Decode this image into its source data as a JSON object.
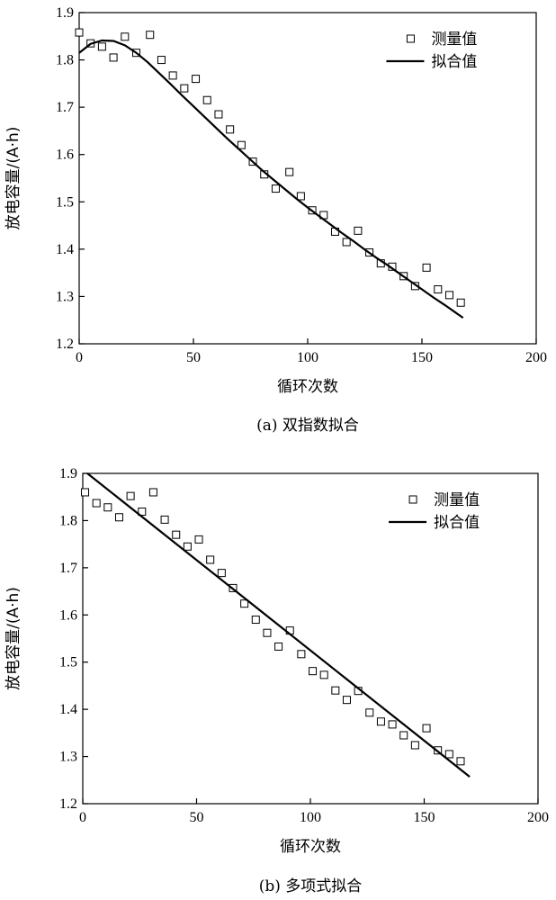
{
  "chart_data": [
    {
      "type": "scatter",
      "caption": "(a) 双指数拟合",
      "xlabel": "循环次数",
      "ylabel": "放电容量/(A·h)",
      "xlim": [
        0,
        200
      ],
      "ylim": [
        1.2,
        1.9
      ],
      "xticks": [
        "0",
        "50",
        "100",
        "150",
        "200"
      ],
      "yticks": [
        "1.2",
        "1.3",
        "1.4",
        "1.5",
        "1.6",
        "1.7",
        "1.8",
        "1.9"
      ],
      "legend": [
        "测量值",
        "拟合值"
      ],
      "legend_position": "top-right",
      "grid": false,
      "series": [
        {
          "name": "测量值",
          "marker": "hollow-square",
          "x": [
            0,
            5,
            10,
            15,
            20,
            25,
            31,
            36,
            41,
            46,
            51,
            56,
            61,
            66,
            71,
            76,
            81,
            86,
            92,
            97,
            102,
            107,
            112,
            117,
            122,
            127,
            132,
            137,
            142,
            147,
            152,
            157,
            162,
            167
          ],
          "y": [
            1.858,
            1.835,
            1.828,
            1.805,
            1.849,
            1.815,
            1.853,
            1.8,
            1.767,
            1.74,
            1.76,
            1.715,
            1.685,
            1.653,
            1.62,
            1.585,
            1.558,
            1.528,
            1.563,
            1.512,
            1.482,
            1.472,
            1.437,
            1.415,
            1.439,
            1.393,
            1.37,
            1.363,
            1.343,
            1.322,
            1.361,
            1.315,
            1.303,
            1.287
          ]
        },
        {
          "name": "拟合值",
          "style": "line",
          "x": [
            0,
            5,
            10,
            15,
            20,
            25,
            30,
            35,
            40,
            45,
            50,
            55,
            60,
            65,
            70,
            75,
            80,
            85,
            90,
            95,
            100,
            105,
            110,
            115,
            120,
            125,
            130,
            135,
            140,
            145,
            150,
            155,
            160,
            165,
            168
          ],
          "y": [
            1.815,
            1.834,
            1.841,
            1.84,
            1.831,
            1.815,
            1.795,
            1.772,
            1.749,
            1.725,
            1.702,
            1.679,
            1.656,
            1.633,
            1.611,
            1.589,
            1.567,
            1.547,
            1.527,
            1.507,
            1.488,
            1.47,
            1.452,
            1.434,
            1.417,
            1.399,
            1.382,
            1.366,
            1.349,
            1.332,
            1.315,
            1.298,
            1.282,
            1.265,
            1.255
          ]
        }
      ]
    },
    {
      "type": "scatter",
      "caption": "(b) 多项式拟合",
      "xlabel": "循环次数",
      "ylabel": "放电容量/(A·h)",
      "xlim": [
        0,
        200
      ],
      "ylim": [
        1.2,
        1.9
      ],
      "xticks": [
        "0",
        "50",
        "100",
        "150",
        "200"
      ],
      "yticks": [
        "1.2",
        "1.3",
        "1.4",
        "1.5",
        "1.6",
        "1.7",
        "1.8",
        "1.9"
      ],
      "legend": [
        "测量值",
        "拟合值"
      ],
      "legend_position": "top-right",
      "grid": false,
      "series": [
        {
          "name": "测量值",
          "marker": "hollow-square",
          "x": [
            1,
            6,
            11,
            16,
            21,
            26,
            31,
            36,
            41,
            46,
            51,
            56,
            61,
            66,
            71,
            76,
            81,
            86,
            91,
            96,
            101,
            106,
            111,
            116,
            121,
            126,
            131,
            136,
            141,
            146,
            151,
            156,
            161,
            166
          ],
          "y": [
            1.86,
            1.837,
            1.828,
            1.807,
            1.852,
            1.819,
            1.86,
            1.802,
            1.77,
            1.745,
            1.76,
            1.717,
            1.689,
            1.657,
            1.624,
            1.59,
            1.562,
            1.533,
            1.567,
            1.517,
            1.481,
            1.473,
            1.44,
            1.42,
            1.439,
            1.393,
            1.374,
            1.368,
            1.345,
            1.324,
            1.36,
            1.313,
            1.305,
            1.29
          ]
        },
        {
          "name": "拟合值",
          "style": "line",
          "x": [
            2,
            170
          ],
          "y": [
            1.9,
            1.257
          ]
        }
      ]
    }
  ]
}
